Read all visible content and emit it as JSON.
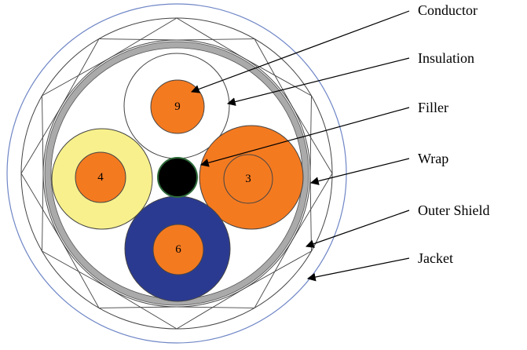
{
  "labels": {
    "conductor": "Conductor",
    "insulation": "Insulation",
    "filler": "Filler",
    "wrap": "Wrap",
    "outer_shield": "Outer Shield",
    "jacket": "Jacket"
  },
  "cores": [
    {
      "number": "9",
      "insulation_color": "#ffffff",
      "conductor_color": "#f47a20"
    },
    {
      "number": "4",
      "insulation_color": "#f7f08c",
      "conductor_color": "#f47a20"
    },
    {
      "number": "3",
      "insulation_color": "#f47a20",
      "conductor_color": "#f47a20"
    },
    {
      "number": "6",
      "insulation_color": "#2b3a91",
      "conductor_color": "#f47a20"
    }
  ],
  "colors": {
    "jacket_outline": "#6f86c6",
    "wrap": "#aaaaaa",
    "filler": "#000000",
    "filler_ring": "#2e6b3a",
    "lines": "#000000"
  }
}
